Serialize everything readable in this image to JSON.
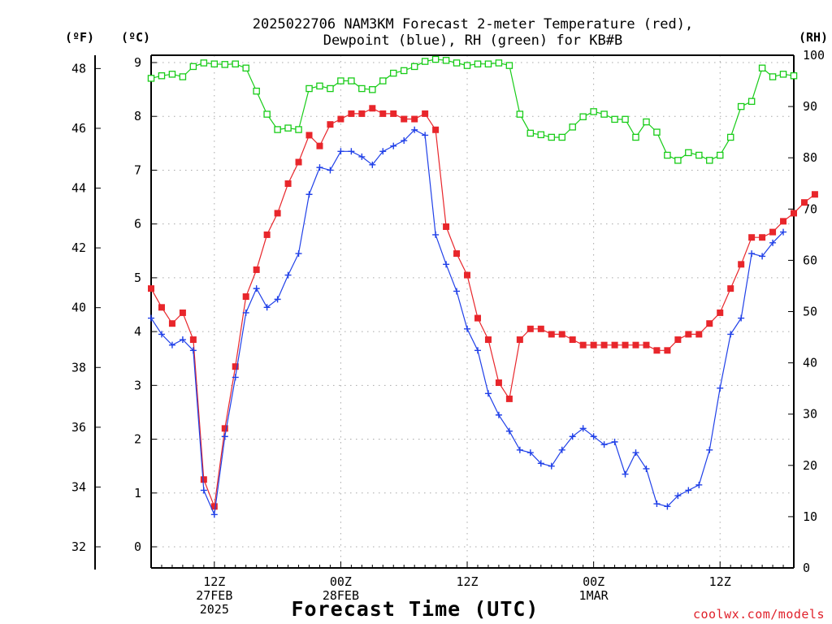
{
  "chart_data": {
    "type": "line",
    "title_lines": [
      "2025022706 NAM3KM Forecast 2-meter Temperature (red),",
      "Dewpoint (blue), RH (green) for KB#B"
    ],
    "xlabel": "Forecast Time (UTC)",
    "credit": "coolwx.com/models",
    "left_outer_unit": "(ºF)",
    "left_inner_unit": "(ºC)",
    "right_unit": "(RH)",
    "x_range_hours": [
      6,
      67
    ],
    "x_ticks": [
      {
        "hour": 12,
        "lines": [
          "12Z",
          "27FEB",
          "2025"
        ]
      },
      {
        "hour": 24,
        "lines": [
          "00Z",
          "28FEB"
        ]
      },
      {
        "hour": 36,
        "lines": [
          "12Z"
        ]
      },
      {
        "hour": 48,
        "lines": [
          "00Z",
          "1MAR"
        ]
      },
      {
        "hour": 60,
        "lines": [
          "12Z"
        ]
      }
    ],
    "celsius_range": [
      -0.4,
      9.15
    ],
    "celsius_ticks": [
      0,
      1,
      2,
      3,
      4,
      5,
      6,
      7,
      8,
      9
    ],
    "fahrenheit_ticks": [
      32,
      34,
      36,
      38,
      40,
      42,
      44,
      46,
      48
    ],
    "rh_range": [
      0,
      100
    ],
    "rh_ticks": [
      0,
      10,
      20,
      30,
      40,
      50,
      60,
      70,
      80,
      90,
      100
    ],
    "grid": true,
    "series": [
      {
        "color": "#e8262b",
        "marker": "filled-square",
        "axis": "celsius",
        "values": [
          4.8,
          4.45,
          4.15,
          4.35,
          3.85,
          1.25,
          0.75,
          2.2,
          3.35,
          4.65,
          5.15,
          5.8,
          6.2,
          6.75,
          7.15,
          7.65,
          7.45,
          7.85,
          7.95,
          8.05,
          8.05,
          8.15,
          8.05,
          8.05,
          7.95,
          7.95,
          8.05,
          7.75,
          5.95,
          5.45,
          5.05,
          4.25,
          3.85,
          3.05,
          2.75,
          3.85,
          4.05,
          4.05,
          3.95,
          3.95,
          3.85,
          3.75,
          3.75,
          3.75,
          3.75,
          3.75,
          3.75,
          3.75,
          3.65,
          3.65,
          3.85,
          3.95,
          3.95,
          4.15,
          4.35,
          4.8,
          5.25,
          5.75,
          5.75,
          5.85,
          6.05,
          6.2,
          6.4,
          6.55
        ]
      },
      {
        "color": "#2040e8",
        "marker": "plus",
        "axis": "celsius",
        "values": [
          4.25,
          3.95,
          3.75,
          3.85,
          3.65,
          1.05,
          0.6,
          2.05,
          3.15,
          4.35,
          4.8,
          4.45,
          4.6,
          5.05,
          5.45,
          6.55,
          7.05,
          7.0,
          7.35,
          7.35,
          7.25,
          7.1,
          7.35,
          7.45,
          7.55,
          7.75,
          7.65,
          5.8,
          5.25,
          4.75,
          4.05,
          3.65,
          2.85,
          2.45,
          2.15,
          1.8,
          1.75,
          1.55,
          1.5,
          1.8,
          2.05,
          2.2,
          2.05,
          1.9,
          1.95,
          1.35,
          1.75,
          1.45,
          0.8,
          0.75,
          0.95,
          1.05,
          1.15,
          1.8,
          2.95,
          3.95,
          4.25,
          5.45,
          5.4,
          5.65,
          5.85
        ]
      },
      {
        "color": "#18cc18",
        "marker": "open-square",
        "axis": "rh",
        "values": [
          95.5,
          96,
          96.3,
          95.8,
          97.8,
          98.5,
          98.3,
          98.2,
          98.3,
          97.5,
          93,
          88.5,
          85.5,
          85.8,
          85.5,
          93.5,
          94,
          93.5,
          95,
          95,
          93.5,
          93.3,
          95,
          96.5,
          97,
          97.8,
          98.8,
          99.2,
          99,
          98.5,
          98,
          98.3,
          98.3,
          98.5,
          98,
          88.5,
          84.8,
          84.5,
          84,
          84,
          86,
          88,
          89,
          88.5,
          87.5,
          87.5,
          84,
          87,
          85,
          80.5,
          79.5,
          81,
          80.5,
          79.5,
          80.5,
          84,
          90,
          91,
          97.5,
          95.8,
          96.3,
          96
        ]
      }
    ]
  }
}
